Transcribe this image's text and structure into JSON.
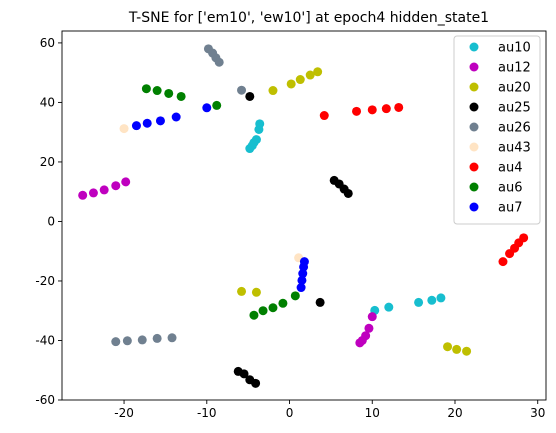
{
  "chart_data": {
    "type": "scatter",
    "title": "T-SNE for ['em10', 'ew10'] at epoch4 hidden_state1",
    "xlabel": "",
    "ylabel": "",
    "xlim": [
      -27.5,
      31.0
    ],
    "ylim": [
      -60,
      64
    ],
    "xticks": [
      -20,
      -10,
      0,
      10,
      20,
      30
    ],
    "yticks": [
      -60,
      -40,
      -20,
      0,
      20,
      40,
      60
    ],
    "grid": false,
    "legend_position": "top-right",
    "series": [
      {
        "name": "au10",
        "color": "#17becf",
        "points": [
          [
            -4.8,
            24.5
          ],
          [
            -4.5,
            25.5
          ],
          [
            -4.3,
            26.5
          ],
          [
            -4.0,
            27.5
          ],
          [
            -3.7,
            30.9
          ],
          [
            -3.6,
            32.8
          ],
          [
            10.3,
            -29.9
          ],
          [
            12.0,
            -28.8
          ],
          [
            15.6,
            -27.2
          ],
          [
            17.2,
            -26.5
          ],
          [
            18.3,
            -25.7
          ]
        ]
      },
      {
        "name": "au12",
        "color": "#bf00bf",
        "points": [
          [
            -25.0,
            8.8
          ],
          [
            -23.7,
            9.6
          ],
          [
            -22.4,
            10.6
          ],
          [
            -21.0,
            12.0
          ],
          [
            -19.8,
            13.3
          ],
          [
            8.5,
            -40.8
          ],
          [
            8.8,
            -40.0
          ],
          [
            9.2,
            -38.4
          ],
          [
            9.6,
            -35.9
          ],
          [
            10.0,
            -32.0
          ]
        ]
      },
      {
        "name": "au20",
        "color": "#bfbf00",
        "points": [
          [
            -2.0,
            44.0
          ],
          [
            0.2,
            46.2
          ],
          [
            1.3,
            47.7
          ],
          [
            2.5,
            49.2
          ],
          [
            3.4,
            50.3
          ],
          [
            -5.8,
            -23.5
          ],
          [
            -4.0,
            -23.8
          ],
          [
            19.1,
            -42.1
          ],
          [
            20.2,
            -43.0
          ],
          [
            21.4,
            -43.6
          ]
        ]
      },
      {
        "name": "au25",
        "color": "#000000",
        "points": [
          [
            -4.8,
            42.0
          ],
          [
            5.4,
            13.8
          ],
          [
            6.0,
            12.6
          ],
          [
            6.6,
            10.9
          ],
          [
            7.1,
            9.4
          ],
          [
            3.7,
            -27.2
          ],
          [
            -6.2,
            -50.4
          ],
          [
            -5.5,
            -51.2
          ],
          [
            -4.8,
            -53.2
          ],
          [
            -4.1,
            -54.4
          ]
        ]
      },
      {
        "name": "au26",
        "color": "#708090",
        "points": [
          [
            -9.8,
            58.0
          ],
          [
            -9.3,
            56.6
          ],
          [
            -8.9,
            55.0
          ],
          [
            -8.5,
            53.5
          ],
          [
            -5.8,
            44.1
          ],
          [
            -21.0,
            -40.4
          ],
          [
            -19.6,
            -40.1
          ],
          [
            -17.8,
            -39.8
          ],
          [
            -16.0,
            -39.3
          ],
          [
            -14.2,
            -39.1
          ]
        ]
      },
      {
        "name": "au43",
        "color": "#ffe4c4",
        "points": [
          [
            -20.0,
            31.2
          ],
          [
            1.1,
            -12.2
          ]
        ]
      },
      {
        "name": "au4",
        "color": "#ff0000",
        "points": [
          [
            4.2,
            35.6
          ],
          [
            8.1,
            37.0
          ],
          [
            10.0,
            37.5
          ],
          [
            11.7,
            37.9
          ],
          [
            13.2,
            38.3
          ],
          [
            25.8,
            -13.5
          ],
          [
            26.6,
            -10.8
          ],
          [
            27.2,
            -9.0
          ],
          [
            27.7,
            -7.2
          ],
          [
            28.3,
            -5.5
          ]
        ]
      },
      {
        "name": "au6",
        "color": "#008000",
        "points": [
          [
            -17.3,
            44.6
          ],
          [
            -16.0,
            44.0
          ],
          [
            -14.6,
            43.0
          ],
          [
            -13.1,
            42.0
          ],
          [
            -8.8,
            39.0
          ],
          [
            -4.3,
            -31.5
          ],
          [
            -3.2,
            -30.0
          ],
          [
            -2.0,
            -29.0
          ],
          [
            -0.8,
            -27.5
          ],
          [
            0.7,
            -25.0
          ]
        ]
      },
      {
        "name": "au7",
        "color": "#0000ff",
        "points": [
          [
            -18.5,
            32.2
          ],
          [
            -17.2,
            33.0
          ],
          [
            -15.6,
            33.8
          ],
          [
            -13.7,
            35.1
          ],
          [
            -10.0,
            38.2
          ],
          [
            1.4,
            -22.2
          ],
          [
            1.5,
            -19.8
          ],
          [
            1.6,
            -17.5
          ],
          [
            1.7,
            -15.3
          ],
          [
            1.8,
            -13.5
          ]
        ]
      }
    ]
  }
}
